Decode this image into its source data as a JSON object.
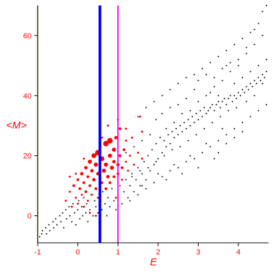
{
  "chart_data": {
    "type": "scatter",
    "title": "",
    "xlabel": "E",
    "ylabel": "<M>",
    "xlim": [
      -1,
      4.75
    ],
    "ylim": [
      -9,
      70
    ],
    "x_ticks": [
      -1,
      0,
      1,
      2,
      3,
      4
    ],
    "y_ticks": [
      0,
      20,
      40,
      60
    ],
    "tick_labels_x": [
      "-1",
      "0",
      "1",
      "2",
      "3",
      "4"
    ],
    "tick_labels_y": [
      "0",
      "20",
      "40",
      "60"
    ],
    "grid": false,
    "legend": "none",
    "colors": {
      "axes": "#000000",
      "left_axis": "#556b2f",
      "text": "#ff0000",
      "black_points": "#000000",
      "red_points": "#ff0000",
      "blue_line": "#0000ff",
      "magenta_line": "#ff00ff"
    },
    "vertical_lines": [
      {
        "x": 0.55,
        "color": "#0000ff"
      },
      {
        "x": 1.0,
        "color": "#ff00ff"
      }
    ],
    "series": [
      {
        "marker_color": "#000000",
        "points": [
          [
            -0.95,
            -7
          ],
          [
            -0.9,
            -6
          ],
          [
            -0.88,
            -5
          ],
          [
            -0.8,
            -4
          ],
          [
            -0.78,
            -6
          ],
          [
            -0.72,
            -3
          ],
          [
            -0.7,
            -5
          ],
          [
            -0.62,
            -2
          ],
          [
            -0.6,
            -4
          ],
          [
            -0.55,
            -1
          ],
          [
            -0.52,
            -3
          ],
          [
            -0.45,
            0
          ],
          [
            -0.42,
            -2
          ],
          [
            -0.38,
            1
          ],
          [
            -0.35,
            -4
          ],
          [
            -0.3,
            2
          ],
          [
            -0.28,
            -1
          ],
          [
            -0.22,
            3
          ],
          [
            -0.2,
            0
          ],
          [
            -0.15,
            -2
          ],
          [
            -0.12,
            4
          ],
          [
            -0.08,
            1
          ],
          [
            -0.05,
            -3
          ],
          [
            0.0,
            2
          ],
          [
            0.02,
            5
          ],
          [
            0.05,
            -1
          ],
          [
            0.1,
            3
          ],
          [
            0.12,
            0
          ],
          [
            0.15,
            6
          ],
          [
            0.2,
            1
          ],
          [
            0.22,
            4
          ],
          [
            0.25,
            -2
          ],
          [
            0.3,
            2
          ],
          [
            0.33,
            7
          ],
          [
            0.38,
            0
          ],
          [
            0.42,
            5
          ],
          [
            0.45,
            3
          ],
          [
            0.5,
            1
          ],
          [
            0.55,
            6
          ],
          [
            0.6,
            2
          ],
          [
            0.62,
            8
          ],
          [
            0.68,
            4
          ],
          [
            0.72,
            0
          ],
          [
            0.75,
            6
          ],
          [
            0.8,
            3
          ],
          [
            0.85,
            9
          ],
          [
            0.9,
            5
          ],
          [
            0.95,
            2
          ],
          [
            1.0,
            7
          ],
          [
            1.05,
            10
          ],
          [
            1.1,
            4
          ],
          [
            1.15,
            8
          ],
          [
            1.2,
            12
          ],
          [
            1.25,
            6
          ],
          [
            1.3,
            10
          ],
          [
            1.35,
            14
          ],
          [
            1.4,
            8
          ],
          [
            1.45,
            12
          ],
          [
            1.5,
            16
          ],
          [
            1.55,
            10
          ],
          [
            1.6,
            14
          ],
          [
            1.65,
            18
          ],
          [
            1.7,
            12
          ],
          [
            1.75,
            20
          ],
          [
            1.8,
            15
          ],
          [
            1.85,
            22
          ],
          [
            1.9,
            17
          ],
          [
            1.95,
            24
          ],
          [
            2.0,
            19
          ],
          [
            2.05,
            26
          ],
          [
            2.1,
            21
          ],
          [
            2.15,
            25
          ],
          [
            2.2,
            23
          ],
          [
            2.25,
            27
          ],
          [
            2.3,
            24
          ],
          [
            2.35,
            28
          ],
          [
            2.4,
            26
          ],
          [
            2.45,
            29
          ],
          [
            2.5,
            27
          ],
          [
            2.55,
            30
          ],
          [
            2.6,
            28
          ],
          [
            2.65,
            31
          ],
          [
            2.7,
            29
          ],
          [
            2.75,
            32
          ],
          [
            2.8,
            30
          ],
          [
            2.85,
            33
          ],
          [
            2.9,
            31
          ],
          [
            2.95,
            34
          ],
          [
            3.0,
            32
          ],
          [
            3.05,
            35
          ],
          [
            3.1,
            33
          ],
          [
            3.15,
            36
          ],
          [
            3.2,
            34
          ],
          [
            3.25,
            35
          ],
          [
            3.3,
            36
          ],
          [
            3.35,
            37
          ],
          [
            3.4,
            35
          ],
          [
            3.45,
            37
          ],
          [
            3.5,
            38
          ],
          [
            3.55,
            36
          ],
          [
            3.6,
            38
          ],
          [
            3.65,
            39
          ],
          [
            3.7,
            37
          ],
          [
            3.75,
            39
          ],
          [
            3.8,
            40
          ],
          [
            3.85,
            38
          ],
          [
            3.9,
            40
          ],
          [
            3.95,
            39
          ],
          [
            4.0,
            41
          ],
          [
            4.05,
            40
          ],
          [
            4.1,
            42
          ],
          [
            4.15,
            41
          ],
          [
            4.2,
            43
          ],
          [
            4.25,
            42
          ],
          [
            4.3,
            44
          ],
          [
            4.35,
            43
          ],
          [
            4.4,
            45
          ],
          [
            4.45,
            44
          ],
          [
            4.5,
            46
          ],
          [
            4.55,
            45
          ],
          [
            4.6,
            47
          ],
          [
            4.65,
            46
          ],
          [
            4.7,
            48
          ],
          [
            1.5,
            33
          ],
          [
            1.7,
            36
          ],
          [
            1.9,
            38
          ],
          [
            2.1,
            40
          ],
          [
            2.3,
            42
          ],
          [
            2.5,
            44
          ],
          [
            2.7,
            46
          ],
          [
            2.9,
            47
          ],
          [
            3.1,
            49
          ],
          [
            3.3,
            51
          ],
          [
            3.5,
            53
          ],
          [
            3.7,
            55
          ],
          [
            3.9,
            57
          ],
          [
            4.1,
            59
          ],
          [
            4.3,
            61
          ],
          [
            4.5,
            64
          ],
          [
            4.6,
            68
          ],
          [
            4.7,
            70
          ],
          [
            4.4,
            62
          ],
          [
            4.2,
            56
          ],
          [
            4.0,
            52
          ],
          [
            3.8,
            48
          ],
          [
            3.6,
            45
          ],
          [
            3.4,
            43
          ],
          [
            3.2,
            40
          ],
          [
            3.0,
            38
          ],
          [
            2.8,
            35
          ],
          [
            2.6,
            34
          ],
          [
            2.4,
            31
          ],
          [
            2.2,
            29
          ],
          [
            1.8,
            27
          ],
          [
            1.6,
            25
          ],
          [
            1.4,
            23
          ],
          [
            1.2,
            21
          ],
          [
            1.3,
            5
          ],
          [
            1.5,
            7
          ],
          [
            1.7,
            9
          ],
          [
            1.9,
            11
          ],
          [
            2.1,
            13
          ],
          [
            2.3,
            15
          ],
          [
            2.5,
            16
          ],
          [
            2.7,
            18
          ],
          [
            2.9,
            19
          ],
          [
            3.1,
            21
          ],
          [
            3.3,
            23
          ],
          [
            3.5,
            25
          ],
          [
            3.7,
            27
          ],
          [
            3.9,
            29
          ],
          [
            4.1,
            31
          ],
          [
            4.3,
            33
          ],
          [
            4.5,
            35
          ],
          [
            4.7,
            37
          ],
          [
            3.6,
            29
          ],
          [
            3.2,
            24
          ],
          [
            2.8,
            20
          ],
          [
            2.4,
            17
          ],
          [
            2.0,
            14
          ],
          [
            1.6,
            10
          ],
          [
            3.0,
            45
          ],
          [
            3.2,
            47
          ],
          [
            3.4,
            46
          ],
          [
            3.6,
            49
          ],
          [
            3.8,
            51
          ],
          [
            4.0,
            50
          ],
          [
            4.2,
            54
          ],
          [
            4.4,
            57
          ],
          [
            4.6,
            60
          ],
          [
            3.7,
            50
          ],
          [
            2.9,
            42
          ],
          [
            2.7,
            39
          ],
          [
            2.5,
            37
          ],
          [
            2.3,
            36
          ],
          [
            2.1,
            34
          ],
          [
            1.95,
            32
          ],
          [
            3.3,
            41
          ],
          [
            3.5,
            40
          ],
          [
            3.9,
            44
          ],
          [
            4.1,
            46
          ],
          [
            4.3,
            48
          ],
          [
            4.5,
            50
          ],
          [
            4.7,
            52
          ],
          [
            4.6,
            44
          ],
          [
            4.4,
            40
          ],
          [
            4.2,
            38
          ],
          [
            3.95,
            36
          ],
          [
            3.75,
            35
          ],
          [
            3.55,
            33
          ],
          [
            3.35,
            31
          ],
          [
            3.15,
            29
          ],
          [
            2.95,
            27
          ],
          [
            2.75,
            25
          ],
          [
            2.55,
            23
          ],
          [
            2.35,
            22
          ],
          [
            2.15,
            20
          ],
          [
            1.95,
            18
          ],
          [
            1.75,
            16
          ],
          [
            1.55,
            15
          ],
          [
            1.35,
            13
          ],
          [
            3.5,
            21
          ],
          [
            3.7,
            24
          ],
          [
            3.9,
            26
          ],
          [
            4.1,
            28
          ],
          [
            3.0,
            16
          ],
          [
            3.4,
            19
          ],
          [
            2.6,
            14
          ],
          [
            2.2,
            12
          ]
        ]
      },
      {
        "marker_color": "#ff0000",
        "points": [
          [
            -0.3,
            5,
            1.5
          ],
          [
            -0.2,
            8,
            1.5
          ],
          [
            -0.15,
            3,
            1.5
          ],
          [
            -0.1,
            10,
            2
          ],
          [
            -0.05,
            6,
            1.5
          ],
          [
            0.0,
            12,
            2
          ],
          [
            0.0,
            4,
            1.5
          ],
          [
            0.05,
            9,
            2
          ],
          [
            0.1,
            14,
            2.5
          ],
          [
            0.1,
            7,
            1.5
          ],
          [
            0.15,
            11,
            2
          ],
          [
            0.15,
            3,
            1.5
          ],
          [
            0.2,
            16,
            2.5
          ],
          [
            0.2,
            8,
            2
          ],
          [
            0.25,
            13,
            2
          ],
          [
            0.25,
            5,
            1.5
          ],
          [
            0.3,
            18,
            3
          ],
          [
            0.3,
            10,
            2
          ],
          [
            0.35,
            15,
            2.5
          ],
          [
            0.35,
            7,
            1.5
          ],
          [
            0.4,
            20,
            3.5
          ],
          [
            0.4,
            12,
            2.5
          ],
          [
            0.45,
            17,
            3
          ],
          [
            0.45,
            9,
            2
          ],
          [
            0.5,
            21,
            4
          ],
          [
            0.5,
            14,
            2.5
          ],
          [
            0.5,
            6,
            1.5
          ],
          [
            0.6,
            19,
            3.5
          ],
          [
            0.6,
            11,
            2
          ],
          [
            0.65,
            15,
            3
          ],
          [
            0.7,
            24,
            4
          ],
          [
            0.7,
            17,
            3
          ],
          [
            0.7,
            9,
            2
          ],
          [
            0.75,
            13,
            2.5
          ],
          [
            0.8,
            25,
            4
          ],
          [
            0.8,
            20,
            3
          ],
          [
            0.8,
            11,
            2
          ],
          [
            0.85,
            16,
            3
          ],
          [
            0.9,
            22,
            3
          ],
          [
            0.9,
            18,
            2.5
          ],
          [
            0.9,
            13,
            2
          ],
          [
            0.95,
            26,
            2.5
          ],
          [
            1.0,
            17,
            2.5
          ],
          [
            1.0,
            14,
            2
          ],
          [
            1.05,
            29,
            2
          ],
          [
            1.05,
            20,
            2
          ],
          [
            1.1,
            16,
            2
          ],
          [
            1.1,
            12,
            1.5
          ],
          [
            1.15,
            22,
            2
          ],
          [
            1.2,
            18,
            1.5
          ],
          [
            1.2,
            25,
            1.5
          ],
          [
            1.25,
            15,
            1.5
          ],
          [
            1.3,
            20,
            1.5
          ],
          [
            1.35,
            26,
            1.5
          ],
          [
            1.4,
            17,
            1.5
          ],
          [
            1.5,
            21,
            1.5
          ],
          [
            1.55,
            33,
            1.5
          ],
          [
            1.6,
            28,
            1.5
          ],
          [
            1.6,
            19,
            1.5
          ],
          [
            1.2,
            29,
            1.5
          ],
          [
            1.0,
            32,
            1.5
          ],
          [
            0.75,
            30,
            1.5
          ],
          [
            -0.05,
            14,
            1.5
          ],
          [
            0.15,
            19,
            1.5
          ],
          [
            0.3,
            1,
            1.5
          ],
          [
            0.55,
            3,
            1.5
          ],
          [
            0.45,
            0,
            1.5
          ],
          [
            -0.2,
            13,
            1.5
          ],
          [
            0.6,
            26,
            1.5
          ],
          [
            0.95,
            6,
            1.5
          ]
        ]
      }
    ]
  }
}
